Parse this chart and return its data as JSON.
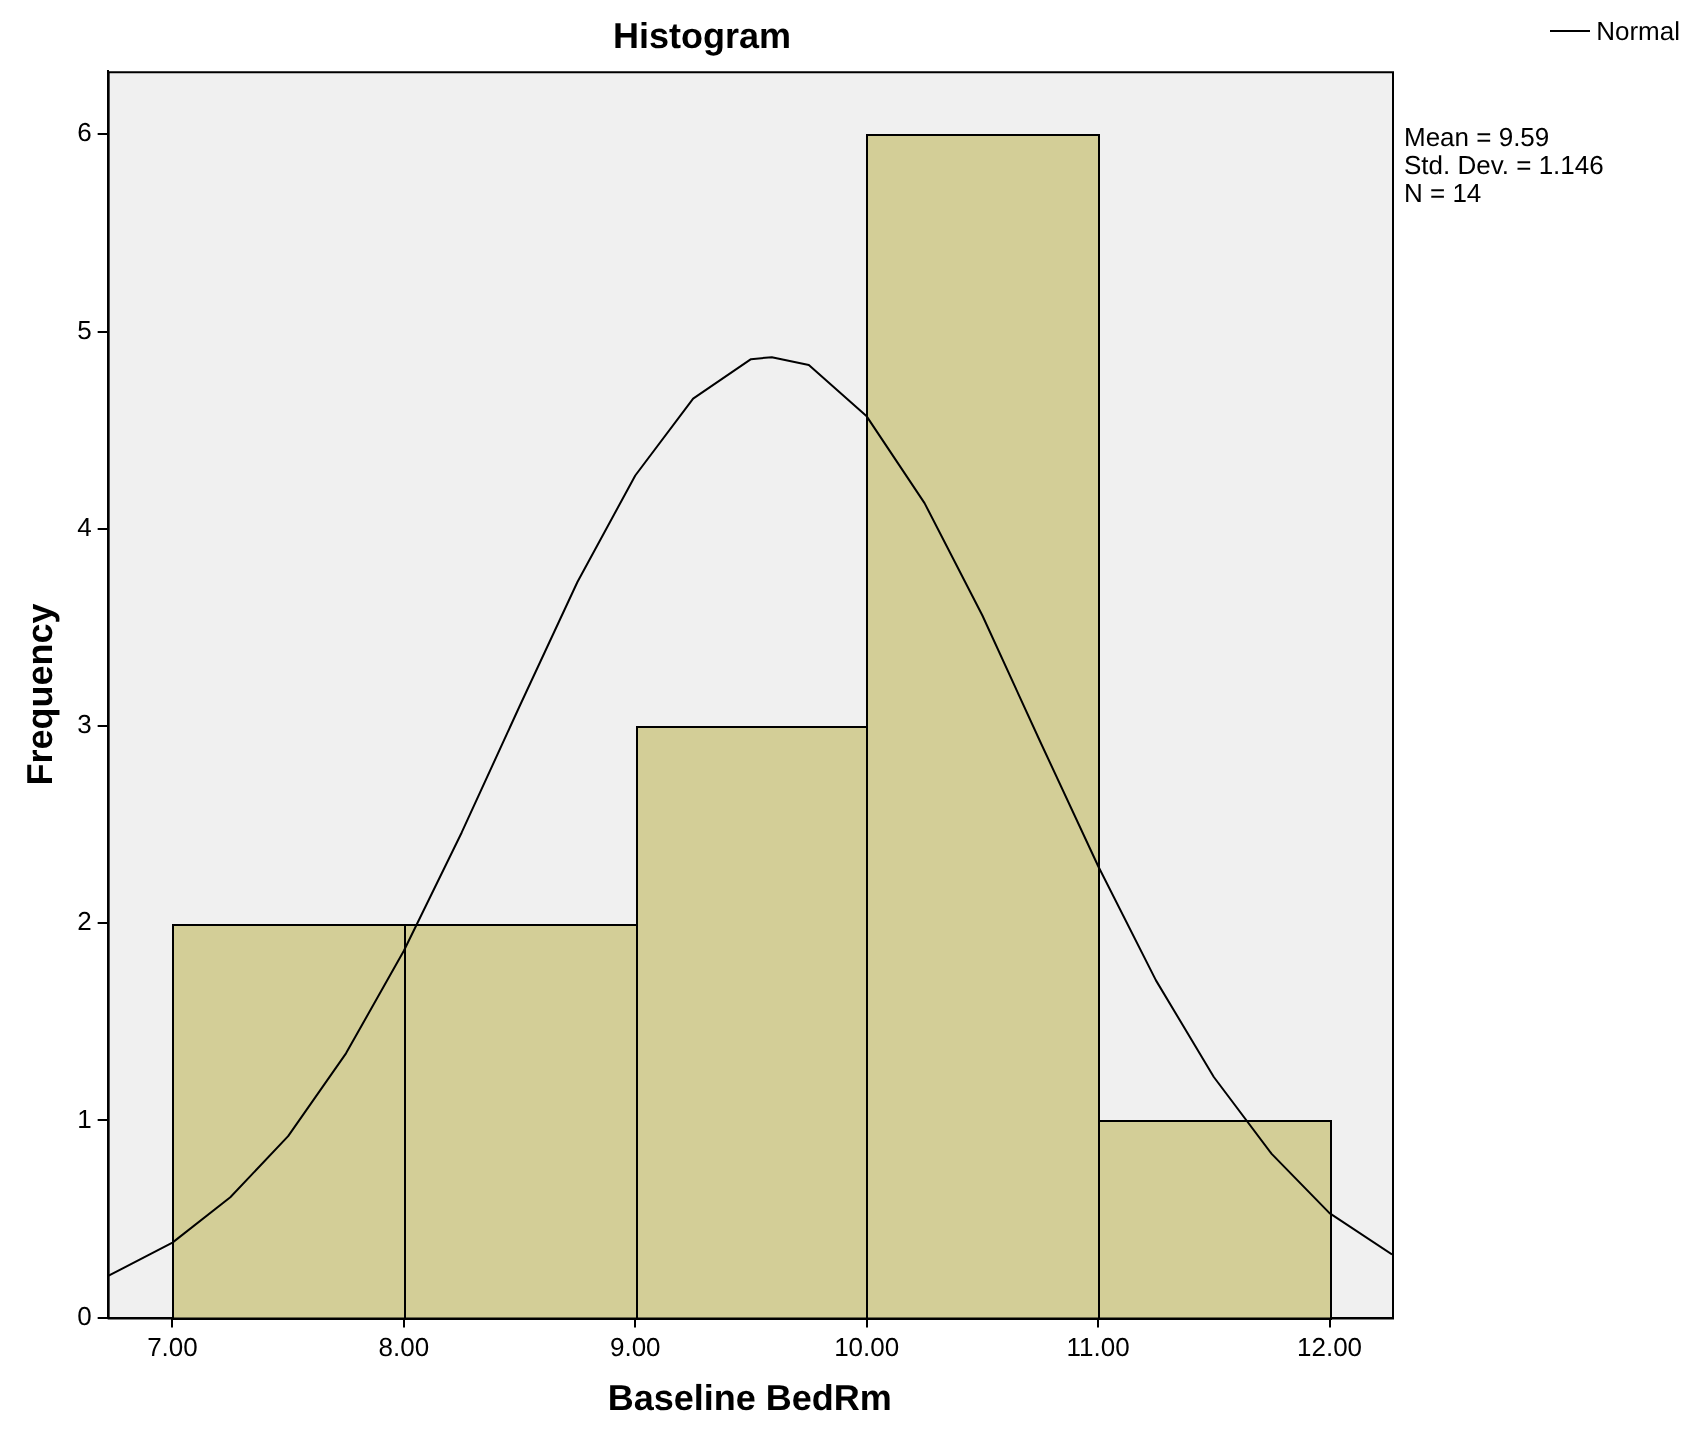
{
  "chart_data": {
    "type": "histogram",
    "title": "Histogram",
    "xlabel": "Baseline BedRm",
    "ylabel": "Frequency",
    "bins": [
      7,
      8,
      9,
      10,
      11,
      12
    ],
    "values": [
      2,
      2,
      3,
      6,
      1
    ],
    "color": "#d3ce97",
    "series": [
      {
        "type": "line",
        "name": "Normal",
        "color": "#000000",
        "x": [
          6.72,
          7,
          7.25,
          7.5,
          7.75,
          8,
          8.25,
          8.5,
          8.75,
          9,
          9.25,
          9.5,
          9.59,
          9.75,
          10,
          10.25,
          10.5,
          10.75,
          11,
          11.25,
          11.5,
          11.75,
          12,
          12.27
        ],
        "values": [
          0.21,
          0.38,
          0.61,
          0.92,
          1.34,
          1.86,
          2.46,
          3.1,
          3.73,
          4.27,
          4.66,
          4.86,
          4.87,
          4.83,
          4.57,
          4.13,
          3.56,
          2.92,
          2.29,
          1.71,
          1.22,
          0.83,
          0.53,
          0.32
        ]
      }
    ],
    "xlim": [
      6.72,
      12.27
    ],
    "xticks": [
      {
        "value": 7,
        "label": "7.00"
      },
      {
        "value": 8,
        "label": "8.00"
      },
      {
        "value": 9,
        "label": "9.00"
      },
      {
        "value": 10,
        "label": "10.00"
      },
      {
        "value": 11,
        "label": "11.00"
      },
      {
        "value": 12,
        "label": "12.00"
      }
    ],
    "ylim": [
      0,
      6.32
    ],
    "yticks": [
      0,
      1,
      2,
      3,
      4,
      5,
      6
    ],
    "grid": false,
    "legend": "top right",
    "marker": "none",
    "line_style": "solid",
    "annotations": [
      "Mean = 9.59",
      "Std. Dev. = 1.146",
      "N = 14"
    ]
  }
}
